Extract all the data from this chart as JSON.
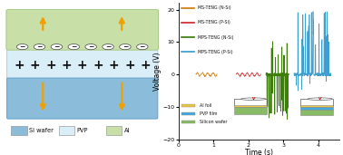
{
  "left_panel": {
    "al_color": "#c8dfa8",
    "pvp_color": "#daeef8",
    "si_color": "#8bbddb",
    "al_border": "#a8c888",
    "pvp_border": "#aad0e8",
    "si_border": "#60a0c8",
    "arrow_color": "#f0a000",
    "legend_items": [
      {
        "label": "Si wafer",
        "color": "#8bbddb"
      },
      {
        "label": "PVP",
        "color": "#daeef8"
      },
      {
        "label": "Al",
        "color": "#c8dfa8"
      }
    ]
  },
  "right_panel": {
    "xlabel": "Time (s)",
    "ylabel": "Voltage (V)",
    "xlim": [
      0,
      4.6
    ],
    "ylim": [
      -20,
      22
    ],
    "yticks": [
      -20,
      -10,
      0,
      10,
      20
    ],
    "xticks": [
      0,
      1,
      2,
      3,
      4
    ],
    "ms_teng_nsi_color": "#cc7700",
    "ms_teng_psi_color": "#cc2222",
    "mps_teng_nsi_color": "#337700",
    "mps_teng_psi_color": "#3399cc",
    "legend_entries": [
      {
        "label": "MS-TENG (N-Si)",
        "color": "#cc7700"
      },
      {
        "label": "MS-TENG (P-Si)",
        "color": "#cc2222"
      },
      {
        "label": "MPS-TENG (N-Si)",
        "color": "#337700"
      },
      {
        "label": "MPS-TENG (P-Si)",
        "color": "#3399cc"
      }
    ],
    "device_legend": [
      {
        "label": "Al foil",
        "color": "#e8c840"
      },
      {
        "label": "PVP film",
        "color": "#44aadd"
      },
      {
        "label": "Silicon wafer",
        "color": "#88bb66"
      }
    ]
  }
}
